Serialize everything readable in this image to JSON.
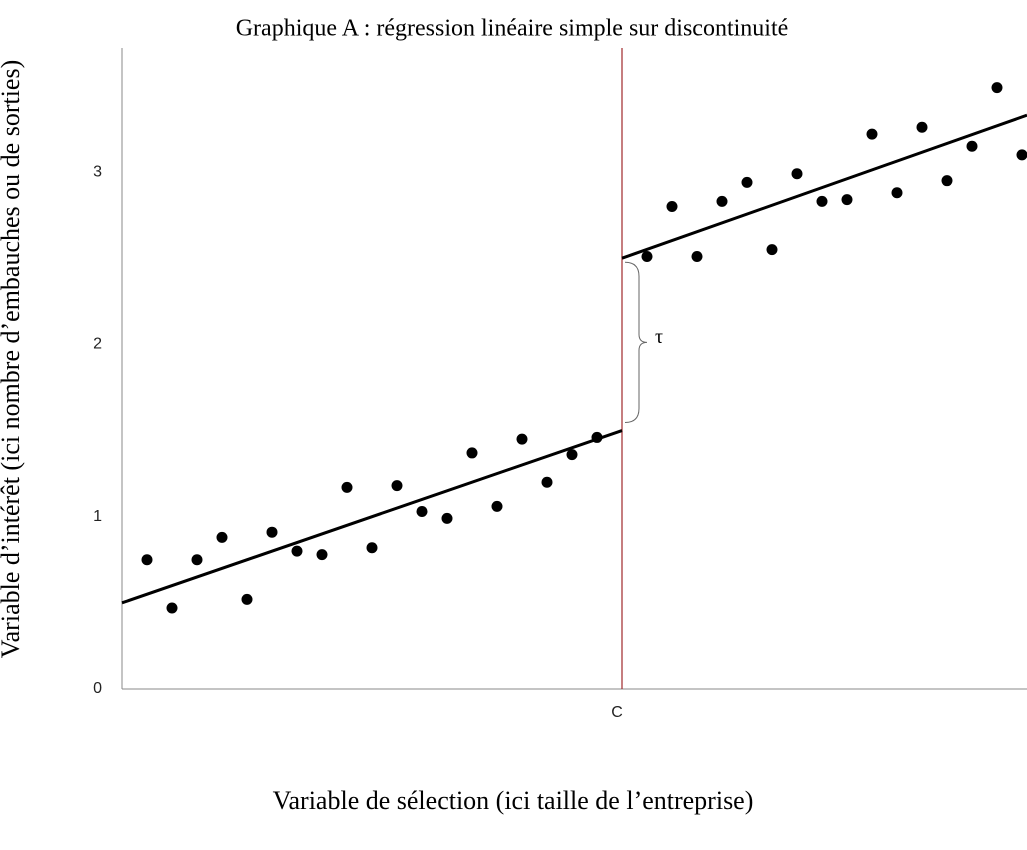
{
  "chart_data": {
    "type": "scatter",
    "title": "Graphique A : régression linéaire simple sur discontinuité",
    "xlabel": "Variable de sélection (ici taille de l’entreprise)",
    "ylabel": "Variable d’intérêt (ici nombre d’embauches ou de sorties)",
    "xlim": [
      0,
      36.2
    ],
    "ylim": [
      0,
      3.72
    ],
    "yticks": [
      0,
      1,
      2,
      3
    ],
    "xticks": [
      {
        "value": 20,
        "label": "C"
      }
    ],
    "cutoff": 20,
    "cutoff_color": "#a0282b",
    "annotation": "τ",
    "grid": false,
    "series": [
      {
        "type": "scatter",
        "color": "#000000",
        "x": [
          1,
          2,
          3,
          4,
          5,
          6,
          7,
          8,
          9,
          10,
          11,
          12,
          13,
          14,
          15,
          16,
          17,
          18,
          19,
          21,
          22,
          23,
          24,
          25,
          26,
          27,
          28,
          29,
          30,
          31,
          32,
          33,
          34,
          35,
          36
        ],
        "values": [
          0.75,
          0.47,
          0.75,
          0.88,
          0.52,
          0.91,
          0.8,
          0.78,
          1.17,
          0.82,
          1.18,
          1.03,
          0.99,
          1.37,
          1.06,
          1.45,
          1.2,
          1.36,
          1.46,
          2.51,
          2.8,
          2.51,
          2.83,
          2.94,
          2.55,
          2.99,
          2.83,
          2.84,
          3.22,
          2.88,
          3.26,
          2.95,
          3.15,
          3.49,
          3.1
        ]
      },
      {
        "type": "line",
        "color": "#000000",
        "x": [
          0,
          20
        ],
        "values": [
          0.5,
          1.5
        ]
      },
      {
        "type": "line",
        "color": "#000000",
        "x": [
          20,
          36.2
        ],
        "values": [
          2.5,
          3.33
        ]
      }
    ]
  }
}
